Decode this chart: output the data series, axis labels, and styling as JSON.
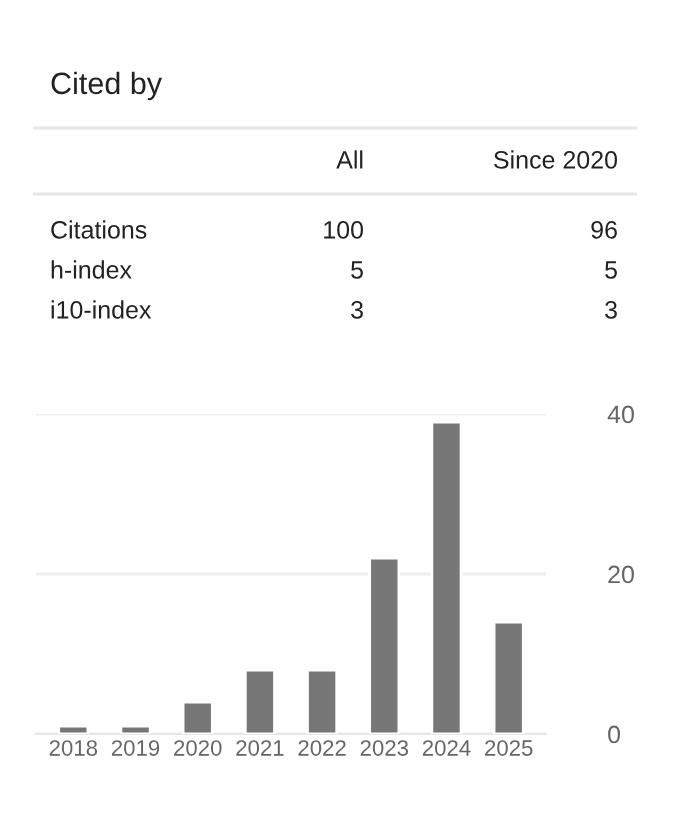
{
  "chart_data": [
    {
      "type": "other",
      "title": "Cited by",
      "categories": [
        "All",
        "Since 2020"
      ],
      "annotations": [
        "Citations",
        "100",
        "96",
        "h-index",
        "5",
        "5",
        "i10-index",
        "3",
        "3"
      ]
    },
    {
      "type": "bar",
      "categories": [
        "2018",
        "2019",
        "2020",
        "2021",
        "2022",
        "2023",
        "2024",
        "2025"
      ],
      "values": [
        1,
        1,
        4,
        8,
        8,
        22,
        39,
        14
      ],
      "color": "#777777",
      "ylim": [
        0,
        40
      ],
      "yticks": [
        0,
        20,
        40
      ],
      "grid": "y",
      "legend": false
    }
  ]
}
